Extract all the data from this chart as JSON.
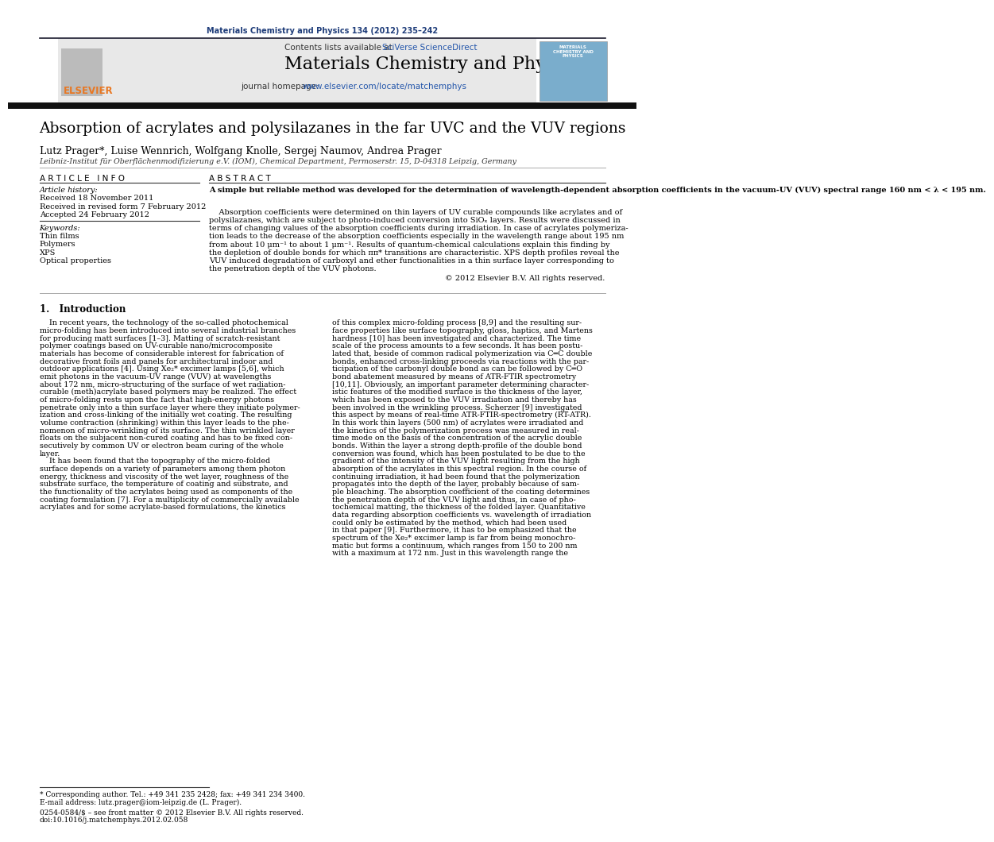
{
  "page_width": 10.21,
  "page_height": 13.51,
  "bg_color": "#ffffff",
  "journal_ref": "Materials Chemistry and Physics 134 (2012) 235–242",
  "journal_ref_color": "#1f3d7a",
  "header_bg": "#e8e8e8",
  "header_text_plain": "Contents lists available at ",
  "header_text_colored": "SciVerse ScienceDirect",
  "sciverse_color": "#2255aa",
  "journal_title": "Materials Chemistry and Physics",
  "journal_url_plain": "journal homepage: ",
  "journal_url_colored": "www.elsevier.com/locate/matchemphys",
  "journal_url_color": "#2255aa",
  "dark_bar_color": "#1a1a1a",
  "elsevier_color": "#e87722",
  "article_title": "Absorption of acrylates and polysilazanes in the far UVC and the VUV regions",
  "authors": "Lutz Prager*, Luise Wennrich, Wolfgang Knolle, Sergej Naumov, Andrea Prager",
  "affiliation": "Leibniz-Institut für Oberflächenmodifizierung e.V. (IOM), Chemical Department, Permoserstr. 15, D-04318 Leipzig, Germany",
  "article_info_header": "A R T I C L E   I N F O",
  "abstract_header": "A B S T R A C T",
  "article_history_label": "Article history:",
  "received1": "Received 18 November 2011",
  "received2": "Received in revised form 7 February 2012",
  "accepted": "Accepted 24 February 2012",
  "keywords_label": "Keywords:",
  "keywords": [
    "Thin films",
    "Polymers",
    "XPS",
    "Optical properties"
  ],
  "abstract_text1_bold": "A simple but reliable method was developed for the determination of wavelength-dependent absorption coefficients in the vacuum-UV (VUV) spectral range 160 nm < λ < 195 nm.",
  "abstract_text2_lines": [
    "    Absorption coefficients were determined on thin layers of UV curable compounds like acrylates and of",
    "polysilazanes, which are subject to photo-induced conversion into SiOₓ layers. Results were discussed in",
    "terms of changing values of the absorption coefficients during irradiation. In case of acrylates polymeriza-",
    "tion leads to the decrease of the absorption coefficients especially in the wavelength range about 195 nm",
    "from about 10 μm⁻¹ to about 1 μm⁻¹. Results of quantum-chemical calculations explain this finding by",
    "the depletion of double bonds for which ππ* transitions are characteristic. XPS depth profiles reveal the",
    "VUV induced degradation of carboxyl and ether functionalities in a thin surface layer corresponding to",
    "the penetration depth of the VUV photons."
  ],
  "copyright": "© 2012 Elsevier B.V. All rights reserved.",
  "intro_heading": "1.   Introduction",
  "intro_col1_lines": [
    "    In recent years, the technology of the so-called photochemical",
    "micro-folding has been introduced into several industrial branches",
    "for producing matt surfaces [1–3]. Matting of scratch-resistant",
    "polymer coatings based on UV-curable nano/microcomposite",
    "materials has become of considerable interest for fabrication of",
    "decorative front foils and panels for architectural indoor and",
    "outdoor applications [4]. Using Xe₂* excimer lamps [5,6], which",
    "emit photons in the vacuum-UV range (VUV) at wavelengths",
    "about 172 nm, micro-structuring of the surface of wet radiation-",
    "curable (meth)acrylate based polymers may be realized. The effect",
    "of micro-folding rests upon the fact that high-energy photons",
    "penetrate only into a thin surface layer where they initiate polymer-",
    "ization and cross-linking of the initially wet coating. The resulting",
    "volume contraction (shrinking) within this layer leads to the phe-",
    "nomenon of micro-wrinkling of its surface. The thin wrinkled layer",
    "floats on the subjacent non-cured coating and has to be fixed con-",
    "secutively by common UV or electron beam curing of the whole",
    "layer.",
    "    It has been found that the topography of the micro-folded",
    "surface depends on a variety of parameters among them photon",
    "energy, thickness and viscosity of the wet layer, roughness of the",
    "substrate surface, the temperature of coating and substrate, and",
    "the functionality of the acrylates being used as components of the",
    "coating formulation [7]. For a multiplicity of commercially available",
    "acrylates and for some acrylate-based formulations, the kinetics"
  ],
  "intro_col2_lines": [
    "of this complex micro-folding process [8,9] and the resulting sur-",
    "face properties like surface topography, gloss, haptics, and Martens",
    "hardness [10] has been investigated and characterized. The time",
    "scale of the process amounts to a few seconds. It has been postu-",
    "lated that, beside of common radical polymerization via C═C double",
    "bonds, enhanced cross-linking proceeds via reactions with the par-",
    "ticipation of the carbonyl double bond as can be followed by C═O",
    "bond abatement measured by means of ATR-FTIR spectrometry",
    "[10,11]. Obviously, an important parameter determining character-",
    "istic features of the modified surface is the thickness of the layer,",
    "which has been exposed to the VUV irradiation and thereby has",
    "been involved in the wrinkling process. Scherzer [9] investigated",
    "this aspect by means of real-time ATR-FTIR-spectrometry (RT-ATR).",
    "In this work thin layers (500 nm) of acrylates were irradiated and",
    "the kinetics of the polymerization process was measured in real-",
    "time mode on the basis of the concentration of the acrylic double",
    "bonds. Within the layer a strong depth-profile of the double bond",
    "conversion was found, which has been postulated to be due to the",
    "gradient of the intensity of the VUV light resulting from the high",
    "absorption of the acrylates in this spectral region. In the course of",
    "continuing irradiation, it had been found that the polymerization",
    "propagates into the depth of the layer, probably because of sam-",
    "ple bleaching. The absorption coefficient of the coating determines",
    "the penetration depth of the VUV light and thus, in case of pho-",
    "tochemical matting, the thickness of the folded layer. Quantitative",
    "data regarding absorption coefficients vs. wavelength of irradiation",
    "could only be estimated by the method, which had been used",
    "in that paper [9]. Furthermore, it has to be emphasized that the",
    "spectrum of the Xe₂* excimer lamp is far from being monochro-",
    "matic but forms a continuum, which ranges from 150 to 200 nm",
    "with a maximum at 172 nm. Just in this wavelength range the"
  ],
  "footnote1": "* Corresponding author. Tel.: +49 341 235 2428; fax: +49 341 234 3400.",
  "footnote2": "E-mail address: lutz.prager@iom-leipzig.de (L. Prager).",
  "issn_line": "0254-0584/$ – see front matter © 2012 Elsevier B.V. All rights reserved.",
  "doi_line": "doi:10.1016/j.matchemphys.2012.02.058"
}
